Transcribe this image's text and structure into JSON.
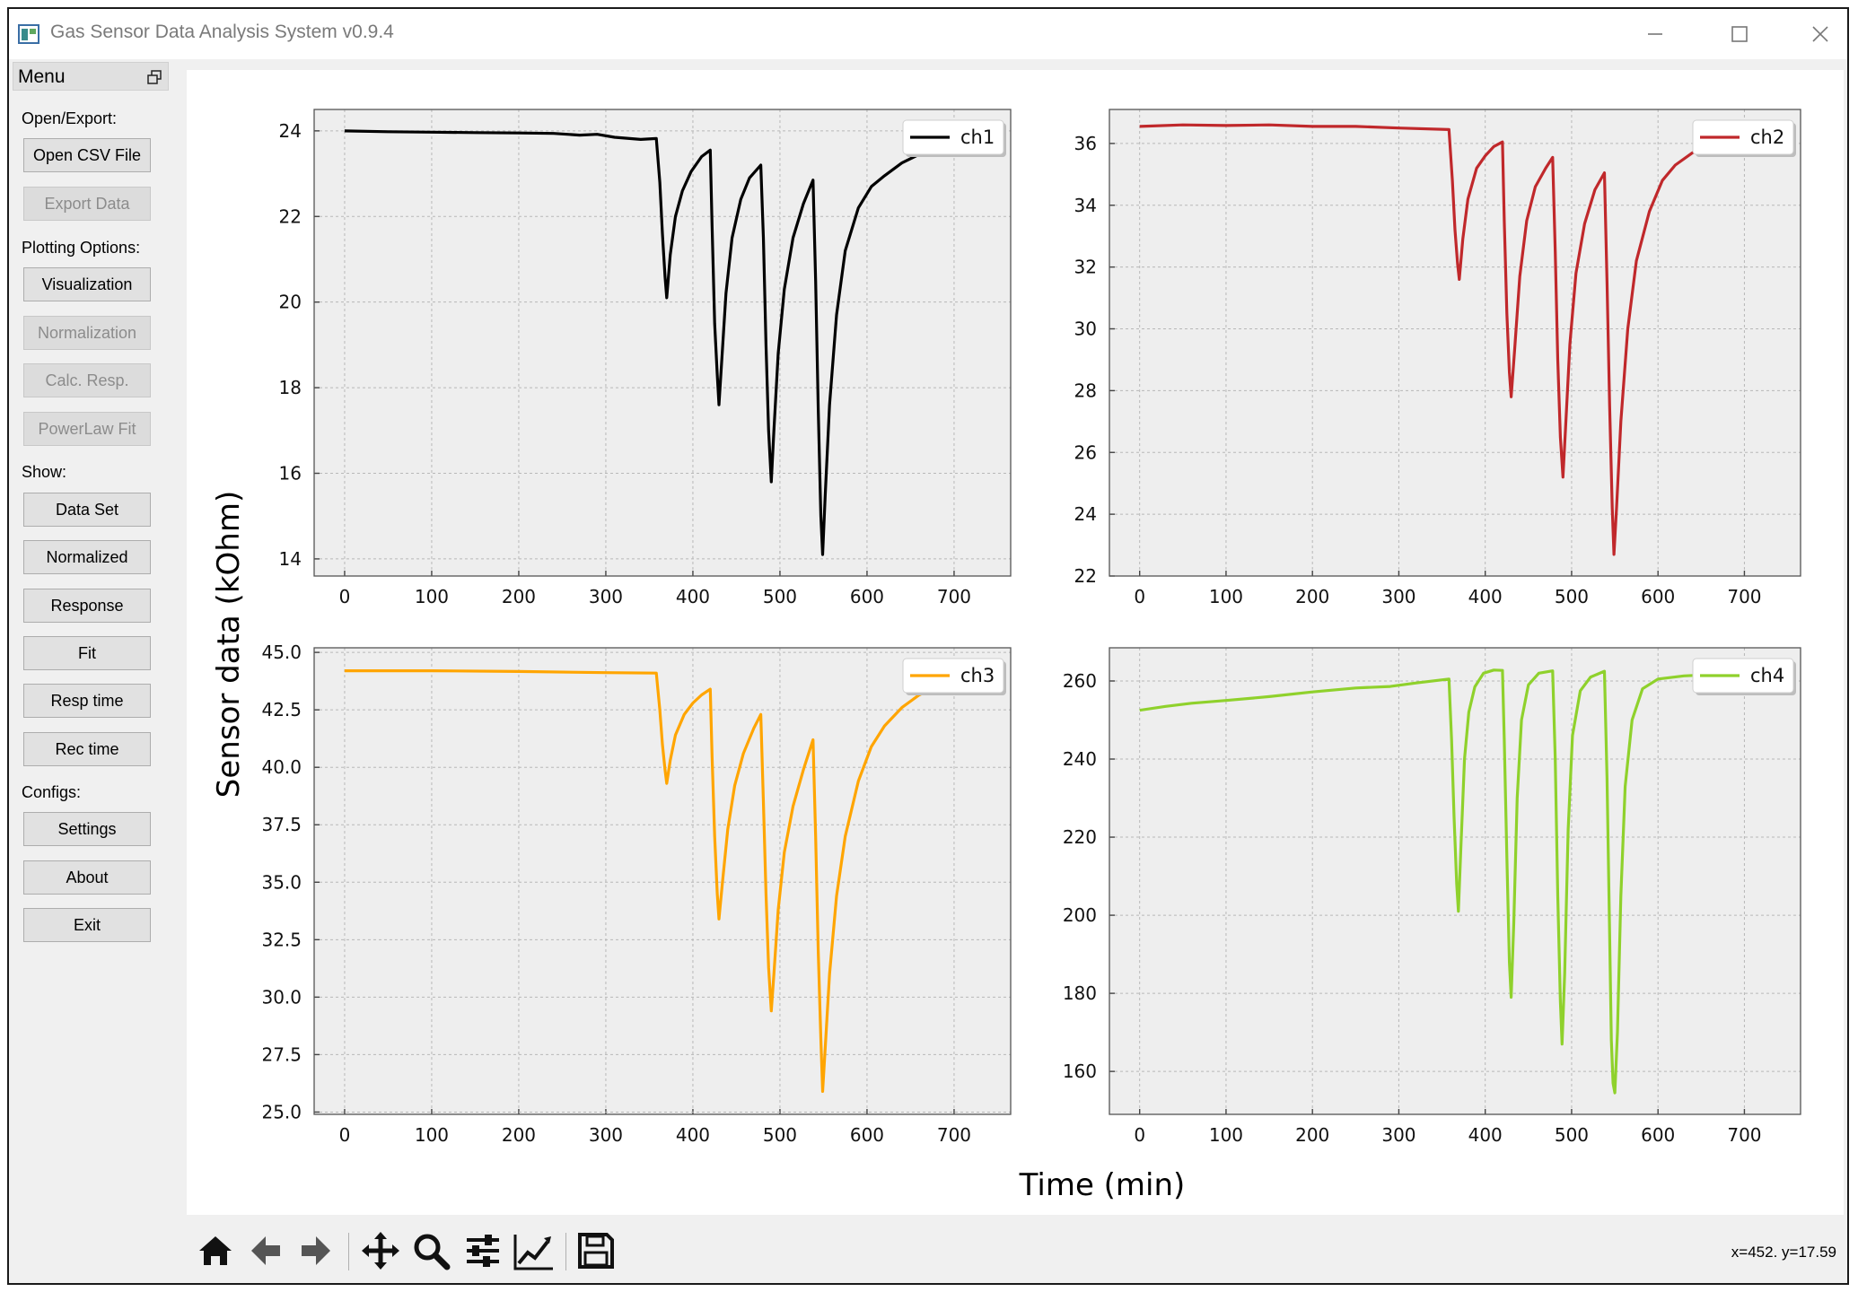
{
  "window": {
    "title": "Gas Sensor Data Analysis System v0.9.4",
    "controls": [
      "minimize-icon",
      "maximize-icon",
      "close-icon"
    ]
  },
  "sidebar": {
    "title": "Menu",
    "groups": [
      {
        "label": "Open/Export:",
        "buttons": [
          {
            "label": "Open CSV File",
            "enabled": true
          },
          {
            "label": "Export Data",
            "enabled": false
          }
        ]
      },
      {
        "label": "Plotting Options:",
        "buttons": [
          {
            "label": "Visualization",
            "enabled": true
          },
          {
            "label": "Normalization",
            "enabled": false
          },
          {
            "label": "Calc. Resp.",
            "enabled": false
          },
          {
            "label": "PowerLaw Fit",
            "enabled": false
          }
        ]
      },
      {
        "label": "Show:",
        "buttons": [
          {
            "label": "Data Set",
            "enabled": true
          },
          {
            "label": "Normalized",
            "enabled": true
          },
          {
            "label": "Response",
            "enabled": true
          },
          {
            "label": "Fit",
            "enabled": true
          },
          {
            "label": "Resp time",
            "enabled": true
          },
          {
            "label": "Rec time",
            "enabled": true
          }
        ]
      },
      {
        "label": "Configs:",
        "buttons": [
          {
            "label": "Settings",
            "enabled": true
          },
          {
            "label": "About",
            "enabled": true
          },
          {
            "label": "Exit",
            "enabled": true
          }
        ]
      }
    ]
  },
  "figure": {
    "ylabel": "Sensor data (kOhm)",
    "xlabel": "Time (min)"
  },
  "toolbar": {
    "icons": [
      "home-icon",
      "back-arrow-icon",
      "forward-arrow-icon",
      "pan-icon",
      "zoom-icon",
      "configure-subplots-icon",
      "edit-axis-icon",
      "save-icon"
    ],
    "coordinates": "x=452. y=17.59"
  },
  "chart_data": [
    {
      "type": "line",
      "series": [
        {
          "name": "ch1",
          "color": "#000000",
          "points": [
            [
              0,
              24.0
            ],
            [
              50,
              23.98
            ],
            [
              100,
              23.97
            ],
            [
              150,
              23.96
            ],
            [
              200,
              23.95
            ],
            [
              240,
              23.94
            ],
            [
              270,
              23.9
            ],
            [
              290,
              23.92
            ],
            [
              310,
              23.85
            ],
            [
              340,
              23.8
            ],
            [
              358,
              23.82
            ],
            [
              362,
              22.8
            ],
            [
              365,
              21.6
            ],
            [
              368,
              20.6
            ],
            [
              370,
              20.1
            ],
            [
              374,
              21.1
            ],
            [
              380,
              22.0
            ],
            [
              388,
              22.6
            ],
            [
              398,
              23.05
            ],
            [
              410,
              23.4
            ],
            [
              420,
              23.55
            ],
            [
              422,
              21.8
            ],
            [
              425,
              19.5
            ],
            [
              428,
              18.3
            ],
            [
              430,
              17.6
            ],
            [
              433,
              18.6
            ],
            [
              438,
              20.2
            ],
            [
              445,
              21.5
            ],
            [
              455,
              22.4
            ],
            [
              465,
              22.9
            ],
            [
              478,
              23.2
            ],
            [
              481,
              21.5
            ],
            [
              484,
              19.0
            ],
            [
              487,
              17.0
            ],
            [
              490,
              15.8
            ],
            [
              493,
              17.0
            ],
            [
              498,
              18.8
            ],
            [
              505,
              20.3
            ],
            [
              515,
              21.5
            ],
            [
              527,
              22.3
            ],
            [
              538,
              22.85
            ],
            [
              541,
              20.5
            ],
            [
              544,
              17.5
            ],
            [
              547,
              15.0
            ],
            [
              549,
              14.1
            ],
            [
              552,
              15.5
            ],
            [
              557,
              17.6
            ],
            [
              565,
              19.7
            ],
            [
              575,
              21.2
            ],
            [
              590,
              22.2
            ],
            [
              605,
              22.7
            ],
            [
              620,
              22.95
            ],
            [
              640,
              23.25
            ],
            [
              660,
              23.45
            ],
            [
              680,
              23.6
            ]
          ]
        }
      ],
      "xlim": [
        -35,
        765
      ],
      "ylim": [
        13.6,
        24.5
      ],
      "xticks": [
        0,
        100,
        200,
        300,
        400,
        500,
        600,
        700
      ],
      "yticks": [
        14,
        16,
        18,
        20,
        22,
        24
      ],
      "ytick_labels": [
        "14",
        "16",
        "18",
        "20",
        "22",
        "24"
      ],
      "legend": "top-right",
      "grid": true
    },
    {
      "type": "line",
      "series": [
        {
          "name": "ch2",
          "color": "#c0282b",
          "points": [
            [
              0,
              36.55
            ],
            [
              50,
              36.6
            ],
            [
              100,
              36.58
            ],
            [
              150,
              36.6
            ],
            [
              200,
              36.55
            ],
            [
              250,
              36.55
            ],
            [
              300,
              36.5
            ],
            [
              358,
              36.45
            ],
            [
              362,
              34.8
            ],
            [
              365,
              33.2
            ],
            [
              368,
              32.1
            ],
            [
              370,
              31.6
            ],
            [
              374,
              32.9
            ],
            [
              380,
              34.2
            ],
            [
              390,
              35.2
            ],
            [
              400,
              35.6
            ],
            [
              410,
              35.9
            ],
            [
              420,
              36.05
            ],
            [
              422,
              33.5
            ],
            [
              425,
              30.5
            ],
            [
              428,
              28.6
            ],
            [
              430,
              27.8
            ],
            [
              434,
              29.3
            ],
            [
              440,
              31.7
            ],
            [
              448,
              33.5
            ],
            [
              458,
              34.6
            ],
            [
              470,
              35.2
            ],
            [
              478,
              35.55
            ],
            [
              481,
              32.5
            ],
            [
              484,
              29.0
            ],
            [
              487,
              26.5
            ],
            [
              490,
              25.2
            ],
            [
              493,
              26.8
            ],
            [
              498,
              29.5
            ],
            [
              505,
              31.8
            ],
            [
              515,
              33.4
            ],
            [
              527,
              34.5
            ],
            [
              538,
              35.05
            ],
            [
              541,
              31.5
            ],
            [
              544,
              27.5
            ],
            [
              547,
              24.2
            ],
            [
              549,
              22.7
            ],
            [
              552,
              24.2
            ],
            [
              557,
              27.0
            ],
            [
              565,
              30.0
            ],
            [
              575,
              32.2
            ],
            [
              590,
              33.8
            ],
            [
              605,
              34.8
            ],
            [
              620,
              35.3
            ],
            [
              640,
              35.7
            ],
            [
              660,
              35.95
            ],
            [
              680,
              36.05
            ]
          ]
        }
      ],
      "xlim": [
        -35,
        765
      ],
      "ylim": [
        22.0,
        37.1
      ],
      "xticks": [
        0,
        100,
        200,
        300,
        400,
        500,
        600,
        700
      ],
      "yticks": [
        22,
        24,
        26,
        28,
        30,
        32,
        34,
        36
      ],
      "ytick_labels": [
        "22",
        "24",
        "26",
        "28",
        "30",
        "32",
        "34",
        "36"
      ],
      "legend": "top-right",
      "grid": true
    },
    {
      "type": "line",
      "series": [
        {
          "name": "ch3",
          "color": "#ffa500",
          "points": [
            [
              0,
              44.2
            ],
            [
              100,
              44.2
            ],
            [
              200,
              44.17
            ],
            [
              300,
              44.12
            ],
            [
              358,
              44.1
            ],
            [
              362,
              42.5
            ],
            [
              365,
              41.0
            ],
            [
              368,
              39.9
            ],
            [
              370,
              39.3
            ],
            [
              374,
              40.3
            ],
            [
              380,
              41.4
            ],
            [
              390,
              42.3
            ],
            [
              400,
              42.8
            ],
            [
              410,
              43.15
            ],
            [
              420,
              43.4
            ],
            [
              422,
              40.5
            ],
            [
              425,
              37.0
            ],
            [
              428,
              34.5
            ],
            [
              430,
              33.4
            ],
            [
              434,
              35.0
            ],
            [
              440,
              37.3
            ],
            [
              448,
              39.2
            ],
            [
              458,
              40.6
            ],
            [
              470,
              41.7
            ],
            [
              478,
              42.3
            ],
            [
              481,
              38.5
            ],
            [
              484,
              34.5
            ],
            [
              487,
              31.3
            ],
            [
              490,
              29.4
            ],
            [
              493,
              31.0
            ],
            [
              498,
              33.8
            ],
            [
              505,
              36.3
            ],
            [
              515,
              38.3
            ],
            [
              527,
              39.9
            ],
            [
              538,
              41.2
            ],
            [
              541,
              37.0
            ],
            [
              544,
              32.0
            ],
            [
              547,
              28.2
            ],
            [
              549,
              25.9
            ],
            [
              552,
              27.8
            ],
            [
              557,
              31.0
            ],
            [
              565,
              34.4
            ],
            [
              575,
              37.0
            ],
            [
              590,
              39.4
            ],
            [
              605,
              40.9
            ],
            [
              620,
              41.8
            ],
            [
              640,
              42.6
            ],
            [
              660,
              43.15
            ],
            [
              680,
              43.5
            ]
          ]
        }
      ],
      "xlim": [
        -35,
        765
      ],
      "ylim": [
        24.9,
        45.2
      ],
      "xticks": [
        0,
        100,
        200,
        300,
        400,
        500,
        600,
        700
      ],
      "yticks": [
        25.0,
        27.5,
        30.0,
        32.5,
        35.0,
        37.5,
        40.0,
        42.5,
        45.0
      ],
      "ytick_labels": [
        "25.0",
        "27.5",
        "30.0",
        "32.5",
        "35.0",
        "37.5",
        "40.0",
        "42.5",
        "45.0"
      ],
      "legend": "top-right",
      "grid": true
    },
    {
      "type": "line",
      "series": [
        {
          "name": "ch4",
          "color": "#8fd12c",
          "points": [
            [
              0,
              252.5
            ],
            [
              30,
              253.5
            ],
            [
              60,
              254.3
            ],
            [
              100,
              255.0
            ],
            [
              150,
              256.0
            ],
            [
              200,
              257.2
            ],
            [
              250,
              258.2
            ],
            [
              290,
              258.6
            ],
            [
              320,
              259.5
            ],
            [
              358,
              260.5
            ],
            [
              361,
              245.0
            ],
            [
              364,
              225.0
            ],
            [
              367,
              208.0
            ],
            [
              369,
              201.0
            ],
            [
              372,
              218.0
            ],
            [
              376,
              240.0
            ],
            [
              381,
              252.0
            ],
            [
              388,
              258.5
            ],
            [
              398,
              262.0
            ],
            [
              410,
              262.8
            ],
            [
              420,
              262.7
            ],
            [
              422,
              245.0
            ],
            [
              425,
              215.0
            ],
            [
              428,
              188.0
            ],
            [
              430,
              179.0
            ],
            [
              433,
              198.0
            ],
            [
              437,
              230.0
            ],
            [
              442,
              250.0
            ],
            [
              450,
              259.0
            ],
            [
              462,
              262.0
            ],
            [
              478,
              262.6
            ],
            [
              481,
              240.0
            ],
            [
              484,
              205.0
            ],
            [
              487,
              178.0
            ],
            [
              489,
              167.0
            ],
            [
              492,
              185.0
            ],
            [
              496,
              222.0
            ],
            [
              501,
              246.0
            ],
            [
              510,
              257.5
            ],
            [
              522,
              261.0
            ],
            [
              538,
              262.5
            ],
            [
              541,
              235.0
            ],
            [
              544,
              195.0
            ],
            [
              546,
              168.0
            ],
            [
              548,
              157.0
            ],
            [
              550,
              154.5
            ],
            [
              553,
              170.0
            ],
            [
              557,
              205.0
            ],
            [
              562,
              233.0
            ],
            [
              570,
              250.0
            ],
            [
              582,
              258.0
            ],
            [
              600,
              260.5
            ],
            [
              630,
              261.3
            ],
            [
              660,
              261.6
            ],
            [
              680,
              261.8
            ]
          ]
        }
      ],
      "xlim": [
        -35,
        765
      ],
      "ylim": [
        149.0,
        268.5
      ],
      "xticks": [
        0,
        100,
        200,
        300,
        400,
        500,
        600,
        700
      ],
      "yticks": [
        160,
        180,
        200,
        220,
        240,
        260
      ],
      "ytick_labels": [
        "160",
        "180",
        "200",
        "220",
        "240",
        "260"
      ],
      "legend": "top-right",
      "grid": true
    }
  ]
}
